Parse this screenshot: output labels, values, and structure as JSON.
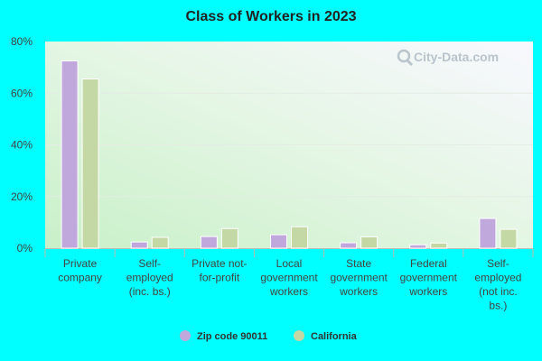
{
  "chart_data": {
    "type": "bar",
    "title": "Class of Workers in 2023",
    "categories": [
      [
        "Private",
        "company"
      ],
      [
        "Self-",
        "employed",
        "(inc. bs.)"
      ],
      [
        "Private not-",
        "for-profit"
      ],
      [
        "Local",
        "government",
        "workers"
      ],
      [
        "State",
        "government",
        "workers"
      ],
      [
        "Federal",
        "government",
        "workers"
      ],
      [
        "Self-",
        "employed",
        "(not inc.",
        "bs.)"
      ]
    ],
    "series": [
      {
        "name": "Zip code 90011",
        "color": "#c0a8dc",
        "values": [
          72.5,
          2.4,
          4.5,
          5.2,
          2.1,
          1.3,
          11.5
        ]
      },
      {
        "name": "California",
        "color": "#c4d8a6",
        "values": [
          65.5,
          4.2,
          7.6,
          8.3,
          4.4,
          2.0,
          7.3
        ]
      }
    ],
    "ylim": [
      0,
      80
    ],
    "yticks": [
      "0%",
      "20%",
      "40%",
      "60%",
      "80%"
    ],
    "grid": true,
    "legend": "bottom"
  },
  "watermark": "City-Data.com"
}
